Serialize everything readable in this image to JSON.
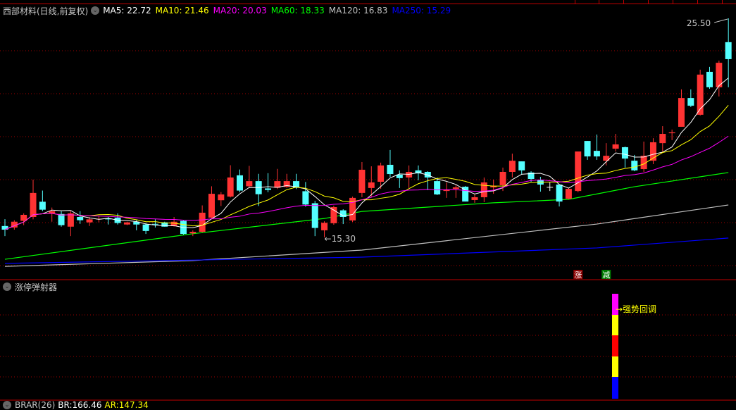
{
  "header": {
    "title": "西部材料(日线,前复权)",
    "legend": [
      {
        "label": "MA5: 22.72",
        "color": "#ffffff"
      },
      {
        "label": "MA10: 21.46",
        "color": "#ffff00"
      },
      {
        "label": "MA20: 20.03",
        "color": "#ff00ff"
      },
      {
        "label": "MA60: 18.33",
        "color": "#00ff00"
      },
      {
        "label": "MA120: 16.83",
        "color": "#c0c0c0"
      },
      {
        "label": "MA250: 15.29",
        "color": "#0000ff"
      }
    ]
  },
  "chart_data": {
    "type": "candlestick",
    "ylim": [
      13.5,
      25.7
    ],
    "grid": true,
    "up_color": "#ff3333",
    "down_color": "#54ffff",
    "high_label": "25.50",
    "low_label": "15.30",
    "ohlc": [
      [
        15.83,
        16.15,
        15.36,
        15.66
      ],
      [
        15.76,
        16.1,
        15.66,
        16.03
      ],
      [
        16.07,
        16.42,
        15.87,
        16.35
      ],
      [
        16.25,
        17.99,
        16.14,
        17.37
      ],
      [
        16.96,
        17.48,
        16.52,
        16.59
      ],
      [
        16.42,
        16.69,
        16.03,
        16.52
      ],
      [
        16.39,
        16.52,
        15.8,
        15.87
      ],
      [
        15.8,
        16.52,
        15.36,
        16.42
      ],
      [
        16.25,
        16.52,
        15.93,
        16.1
      ],
      [
        16.0,
        16.25,
        15.83,
        16.14
      ],
      [
        16.14,
        16.28,
        16.0,
        16.17
      ],
      [
        16.18,
        16.25,
        15.9,
        16.14
      ],
      [
        16.22,
        16.42,
        15.9,
        15.97
      ],
      [
        15.9,
        16.03,
        15.87,
        16.0
      ],
      [
        16.03,
        16.1,
        15.63,
        15.9
      ],
      [
        15.9,
        15.97,
        15.46,
        15.6
      ],
      [
        15.93,
        16.14,
        15.76,
        15.9
      ],
      [
        16.0,
        16.03,
        15.8,
        15.8
      ],
      [
        15.83,
        16.25,
        15.8,
        16.03
      ],
      [
        16.07,
        16.1,
        15.43,
        15.46
      ],
      [
        15.49,
        15.63,
        15.36,
        15.56
      ],
      [
        15.56,
        16.79,
        15.53,
        16.45
      ],
      [
        16.22,
        17.68,
        16.14,
        17.33
      ],
      [
        17.03,
        17.41,
        16.76,
        17.3
      ],
      [
        17.2,
        18.66,
        17.16,
        18.09
      ],
      [
        18.19,
        18.46,
        17.4,
        17.48
      ],
      [
        17.68,
        18.63,
        17.61,
        17.92
      ],
      [
        17.92,
        18.26,
        16.76,
        17.31
      ],
      [
        17.58,
        18.29,
        17.4,
        17.51
      ],
      [
        17.61,
        18.49,
        17.55,
        17.92
      ],
      [
        17.65,
        18.26,
        17.61,
        17.92
      ],
      [
        17.92,
        18.26,
        17.55,
        17.61
      ],
      [
        17.45,
        17.88,
        16.73,
        16.83
      ],
      [
        16.89,
        17.0,
        15.36,
        15.74
      ],
      [
        15.63,
        16.05,
        15.3,
        15.98
      ],
      [
        15.96,
        16.78,
        15.89,
        16.71
      ],
      [
        16.56,
        16.61,
        15.92,
        16.25
      ],
      [
        16.09,
        17.2,
        16.02,
        17.14
      ],
      [
        17.37,
        18.81,
        17.17,
        18.45
      ],
      [
        17.6,
        18.61,
        17.2,
        17.86
      ],
      [
        17.89,
        18.78,
        17.56,
        18.65
      ],
      [
        18.68,
        19.37,
        18.12,
        18.25
      ],
      [
        18.22,
        18.42,
        17.6,
        18.06
      ],
      [
        18.09,
        18.65,
        17.6,
        18.35
      ],
      [
        18.42,
        18.65,
        17.96,
        18.28
      ],
      [
        18.35,
        18.38,
        17.5,
        18.09
      ],
      [
        17.92,
        18.09,
        17.27,
        17.3
      ],
      [
        17.46,
        17.86,
        17.14,
        17.53
      ],
      [
        17.56,
        17.73,
        17.14,
        17.63
      ],
      [
        17.66,
        17.69,
        16.97,
        16.97
      ],
      [
        17.04,
        17.3,
        16.91,
        17.17
      ],
      [
        17.17,
        18.09,
        16.94,
        17.86
      ],
      [
        17.63,
        17.99,
        17.33,
        17.7
      ],
      [
        17.73,
        18.55,
        17.46,
        18.35
      ],
      [
        18.35,
        19.2,
        18.09,
        18.87
      ],
      [
        18.84,
        18.84,
        18.22,
        18.42
      ],
      [
        18.32,
        18.38,
        17.89,
        18.02
      ],
      [
        17.99,
        18.12,
        17.43,
        17.76
      ],
      [
        17.65,
        17.86,
        17.46,
        17.65
      ],
      [
        17.76,
        17.76,
        16.74,
        16.97
      ],
      [
        17.1,
        17.6,
        17.07,
        17.56
      ],
      [
        17.46,
        19.3,
        17.4,
        19.3
      ],
      [
        19.79,
        19.79,
        18.91,
        19.07
      ],
      [
        19.33,
        20.09,
        18.91,
        19.07
      ],
      [
        18.87,
        19.69,
        18.65,
        19.1
      ],
      [
        19.43,
        20.12,
        19.3,
        19.63
      ],
      [
        19.5,
        19.53,
        18.55,
        18.97
      ],
      [
        18.87,
        19.14,
        18.38,
        18.42
      ],
      [
        18.48,
        19.76,
        18.35,
        19.1
      ],
      [
        18.87,
        19.92,
        18.71,
        19.73
      ],
      [
        19.69,
        20.48,
        19.3,
        20.12
      ],
      [
        20.15,
        20.32,
        19.83,
        20.19
      ],
      [
        20.45,
        22.19,
        20.45,
        21.79
      ],
      [
        21.79,
        22.19,
        21.37,
        21.43
      ],
      [
        21.01,
        23.11,
        20.97,
        22.88
      ],
      [
        23.01,
        23.24,
        22.22,
        22.29
      ],
      [
        22.29,
        23.53,
        21.86,
        23.43
      ],
      [
        24.39,
        25.5,
        22.29,
        23.6
      ]
    ],
    "computed_ma": [
      {
        "period": 5,
        "color": "#ffffff"
      },
      {
        "period": 10,
        "color": "#ffff00"
      },
      {
        "period": 20,
        "color": "#ff00ff"
      }
    ],
    "long_ma": [
      {
        "period": 60,
        "color": "#00ff00",
        "points": [
          [
            0,
            14.28
          ],
          [
            20,
            15.47
          ],
          [
            34,
            16.18
          ],
          [
            38,
            16.51
          ],
          [
            52,
            16.91
          ],
          [
            60,
            17.07
          ],
          [
            67,
            17.66
          ],
          [
            77,
            18.32
          ]
        ]
      },
      {
        "period": 120,
        "color": "#c0c0c0",
        "points": [
          [
            0,
            13.95
          ],
          [
            20,
            14.22
          ],
          [
            38,
            14.71
          ],
          [
            63,
            15.92
          ],
          [
            77,
            16.81
          ]
        ]
      },
      {
        "period": 250,
        "color": "#0000ff",
        "points": [
          [
            0,
            14.09
          ],
          [
            38,
            14.38
          ],
          [
            63,
            14.81
          ],
          [
            77,
            15.27
          ]
        ]
      }
    ],
    "markers": [
      {
        "index": 61,
        "text": "涨",
        "bg": "#8b0000"
      },
      {
        "index": 64,
        "text": "减",
        "bg": "#007a00"
      }
    ]
  },
  "indicator": {
    "title": "涨停弹射器",
    "bar_colors": [
      "#ff00ff",
      "#ffff00",
      "#ff0000",
      "#ffff00",
      "#0000ff"
    ],
    "signal_label": "→强势回调",
    "signal_color": "#ffff00"
  },
  "footer": {
    "name": "BRAR(26)",
    "br": "BR:166.46",
    "ar": "AR:147.34"
  }
}
